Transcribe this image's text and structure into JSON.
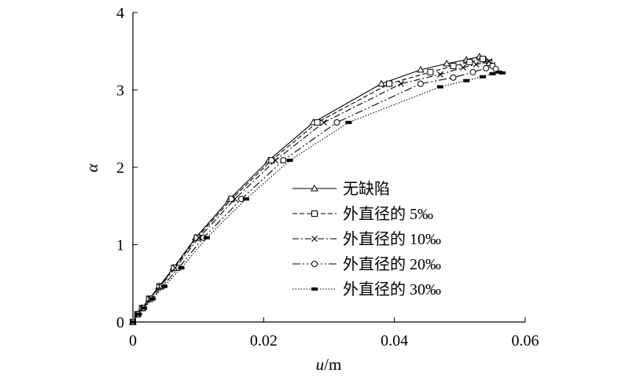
{
  "chart_data": {
    "type": "line",
    "title": "",
    "xlabel_var": "u",
    "xlabel_unit": "/m",
    "ylabel": "α",
    "xlim": [
      0,
      0.06
    ],
    "ylim": [
      0,
      4
    ],
    "xticks": [
      0,
      0.02,
      0.04,
      0.06
    ],
    "xtick_labels": [
      "0",
      "0.02",
      "0.04",
      "0.06"
    ],
    "yticks": [
      0,
      1,
      2,
      3,
      4
    ],
    "ytick_labels": [
      "0",
      "1",
      "2",
      "3",
      "4"
    ],
    "grid": false,
    "legend_position": "center-right",
    "series": [
      {
        "name": "无缺陷",
        "style": "solid",
        "marker": "triangle",
        "x": [
          0.0,
          0.0007,
          0.0014,
          0.0025,
          0.004,
          0.0062,
          0.0096,
          0.0148,
          0.0208,
          0.0276,
          0.038,
          0.044,
          0.048,
          0.051,
          0.053,
          0.054
        ],
        "y": [
          0.0,
          0.1,
          0.18,
          0.3,
          0.46,
          0.7,
          1.09,
          1.59,
          2.09,
          2.58,
          3.08,
          3.26,
          3.34,
          3.39,
          3.43,
          3.38
        ]
      },
      {
        "name": "外直径的 5‰",
        "style": "dashed",
        "marker": "square",
        "x": [
          0.0,
          0.0007,
          0.0014,
          0.0025,
          0.0041,
          0.0063,
          0.0098,
          0.0151,
          0.0212,
          0.0282,
          0.0392,
          0.0455,
          0.049,
          0.0515,
          0.0535,
          0.0545
        ],
        "y": [
          0.0,
          0.1,
          0.18,
          0.3,
          0.46,
          0.7,
          1.09,
          1.59,
          2.09,
          2.58,
          3.08,
          3.23,
          3.31,
          3.36,
          3.4,
          3.35
        ]
      },
      {
        "name": "外直径的 10‰",
        "style": "dashdot",
        "marker": "cross",
        "x": [
          0.0,
          0.0007,
          0.0015,
          0.0026,
          0.0042,
          0.0065,
          0.0101,
          0.0156,
          0.0218,
          0.0292,
          0.041,
          0.047,
          0.0505,
          0.0525,
          0.0545,
          0.055
        ],
        "y": [
          0.0,
          0.1,
          0.18,
          0.3,
          0.46,
          0.7,
          1.09,
          1.59,
          2.09,
          2.58,
          3.08,
          3.2,
          3.29,
          3.33,
          3.37,
          3.32
        ]
      },
      {
        "name": "外直径的 20‰",
        "style": "dashdotdot",
        "marker": "circle",
        "x": [
          0.0,
          0.0008,
          0.0016,
          0.0028,
          0.0045,
          0.007,
          0.0108,
          0.0166,
          0.023,
          0.0312,
          0.044,
          0.049,
          0.052,
          0.054,
          0.055,
          0.0555
        ],
        "y": [
          0.0,
          0.1,
          0.18,
          0.3,
          0.46,
          0.7,
          1.09,
          1.59,
          2.09,
          2.58,
          3.08,
          3.16,
          3.23,
          3.28,
          3.31,
          3.27
        ]
      },
      {
        "name": "外直径的 30‰",
        "style": "dotted",
        "marker": "bar",
        "x": [
          0.0,
          0.0009,
          0.0017,
          0.003,
          0.0048,
          0.0074,
          0.0113,
          0.0173,
          0.024,
          0.033,
          0.047,
          0.051,
          0.0535,
          0.055,
          0.056,
          0.0565
        ],
        "y": [
          0.0,
          0.1,
          0.18,
          0.3,
          0.46,
          0.7,
          1.09,
          1.59,
          2.09,
          2.58,
          3.04,
          3.12,
          3.17,
          3.21,
          3.23,
          3.22
        ]
      }
    ]
  }
}
